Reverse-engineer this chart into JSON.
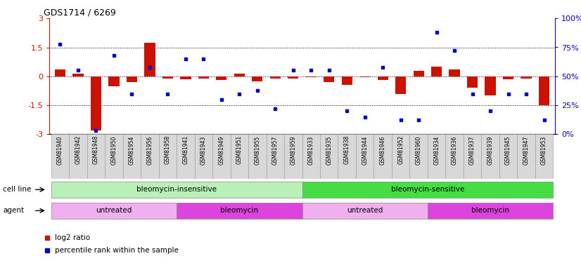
{
  "title": "GDS1714 / 6269",
  "samples": [
    "GSM81940",
    "GSM81942",
    "GSM81948",
    "GSM81950",
    "GSM81954",
    "GSM81956",
    "GSM81958",
    "GSM81941",
    "GSM81943",
    "GSM81949",
    "GSM81951",
    "GSM81955",
    "GSM81957",
    "GSM81959",
    "GSM81933",
    "GSM81935",
    "GSM81938",
    "GSM81944",
    "GSM81946",
    "GSM81952",
    "GSM81960",
    "GSM81934",
    "GSM81936",
    "GSM81937",
    "GSM81939",
    "GSM81945",
    "GSM81947",
    "GSM81953"
  ],
  "log2_ratio": [
    0.35,
    0.12,
    -2.8,
    -0.5,
    -0.3,
    1.75,
    -0.1,
    -0.15,
    -0.1,
    -0.2,
    0.15,
    -0.25,
    -0.1,
    -0.1,
    -0.05,
    -0.3,
    -0.45,
    -0.05,
    -0.2,
    -0.9,
    0.3,
    0.5,
    0.35,
    -0.6,
    -1.0,
    -0.15,
    -0.1,
    -1.5
  ],
  "percentile_rank": [
    78,
    55,
    3,
    68,
    35,
    58,
    35,
    65,
    65,
    30,
    35,
    38,
    22,
    55,
    55,
    55,
    20,
    15,
    58,
    12,
    12,
    88,
    72,
    35,
    20,
    35,
    35,
    12
  ],
  "cell_line_groups": [
    {
      "label": "bleomycin-insensitive",
      "start": 0,
      "end": 14,
      "color": "#b8f0b8"
    },
    {
      "label": "bleomycin-sensitive",
      "start": 14,
      "end": 28,
      "color": "#44dd44"
    }
  ],
  "agent_groups": [
    {
      "label": "untreated",
      "start": 0,
      "end": 7,
      "color": "#f0b0f0"
    },
    {
      "label": "bleomycin",
      "start": 7,
      "end": 14,
      "color": "#dd44dd"
    },
    {
      "label": "untreated",
      "start": 14,
      "end": 21,
      "color": "#f0b0f0"
    },
    {
      "label": "bleomycin",
      "start": 21,
      "end": 28,
      "color": "#dd44dd"
    }
  ],
  "ylim": [
    -3,
    3
  ],
  "y2lim": [
    0,
    100
  ],
  "yticks_left": [
    -3,
    -1.5,
    0,
    1.5,
    3
  ],
  "yticks_right": [
    0,
    25,
    50,
    75,
    100
  ],
  "dotted_lines": [
    -1.5,
    0,
    1.5
  ],
  "bar_color": "#cc1100",
  "dot_color": "#0000cc",
  "bg_tick_color": "#d8d8d8",
  "legend_items": [
    {
      "label": "log2 ratio",
      "color": "#cc1100"
    },
    {
      "label": "percentile rank within the sample",
      "color": "#0000cc"
    }
  ]
}
